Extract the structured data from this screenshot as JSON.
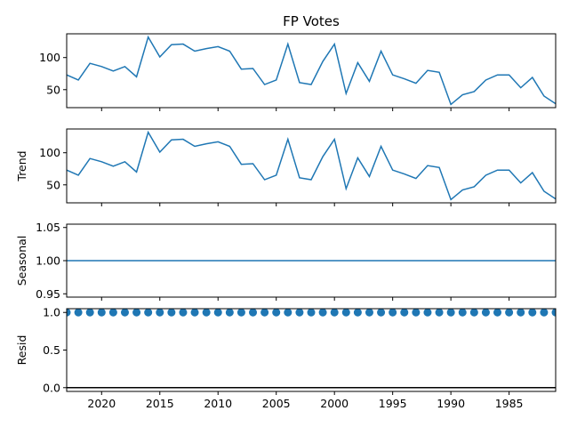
{
  "chart_data": {
    "type": "line",
    "title": "FP Votes",
    "x_axis": {
      "orientation": "reversed",
      "tick_labels": [
        "2020",
        "2015",
        "2010",
        "2005",
        "2000",
        "1995",
        "1990",
        "1985"
      ],
      "tick_values": [
        2020,
        2015,
        2010,
        2005,
        2000,
        1995,
        1990,
        1985
      ],
      "xlim": [
        2023,
        1981
      ]
    },
    "x": [
      2023,
      2022,
      2021,
      2020,
      2019,
      2018,
      2017,
      2016,
      2015,
      2014,
      2013,
      2012,
      2011,
      2010,
      2009,
      2008,
      2007,
      2006,
      2005,
      2004,
      2003,
      2002,
      2001,
      2000,
      1999,
      1998,
      1997,
      1996,
      1995,
      1994,
      1993,
      1992,
      1991,
      1990,
      1989,
      1988,
      1987,
      1986,
      1985,
      1984,
      1983,
      1982,
      1981
    ],
    "panels": [
      {
        "name": "observed",
        "ylabel": "",
        "yticks": [
          50,
          100
        ],
        "ylim": [
          22,
          137
        ],
        "style": "line",
        "color": "#1f77b4",
        "values": [
          73,
          65,
          91,
          86,
          79,
          86,
          70,
          132,
          101,
          120,
          121,
          110,
          114,
          117,
          110,
          82,
          83,
          58,
          65,
          121,
          61,
          58,
          94,
          121,
          44,
          92,
          63,
          110,
          73,
          67,
          60,
          80,
          77,
          27,
          42,
          47,
          65,
          73,
          73,
          53,
          69,
          40,
          28
        ]
      },
      {
        "name": "trend",
        "ylabel": "Trend",
        "yticks": [
          50,
          100
        ],
        "ylim": [
          22,
          137
        ],
        "style": "line",
        "color": "#1f77b4",
        "values": [
          73,
          65,
          91,
          86,
          79,
          86,
          70,
          132,
          101,
          120,
          121,
          110,
          114,
          117,
          110,
          82,
          83,
          58,
          65,
          121,
          61,
          58,
          94,
          121,
          44,
          92,
          63,
          110,
          73,
          67,
          60,
          80,
          77,
          27,
          42,
          47,
          65,
          73,
          73,
          53,
          69,
          40,
          28
        ]
      },
      {
        "name": "seasonal",
        "ylabel": "Seasonal",
        "yticks": [
          0.95,
          1.0,
          1.05
        ],
        "ytick_labels": [
          "0.95",
          "1.00",
          "1.05"
        ],
        "ylim": [
          0.945,
          1.055
        ],
        "style": "line",
        "color": "#1f77b4",
        "constant": 1.0
      },
      {
        "name": "resid",
        "ylabel": "Resid",
        "yticks": [
          0.0,
          0.5,
          1.0
        ],
        "ytick_labels": [
          "0.0",
          "0.5",
          "1.0"
        ],
        "ylim": [
          -0.05,
          1.05
        ],
        "style": "scatter",
        "color": "#1f77b4",
        "constant": 1.0,
        "baseline": 0.0
      }
    ]
  }
}
